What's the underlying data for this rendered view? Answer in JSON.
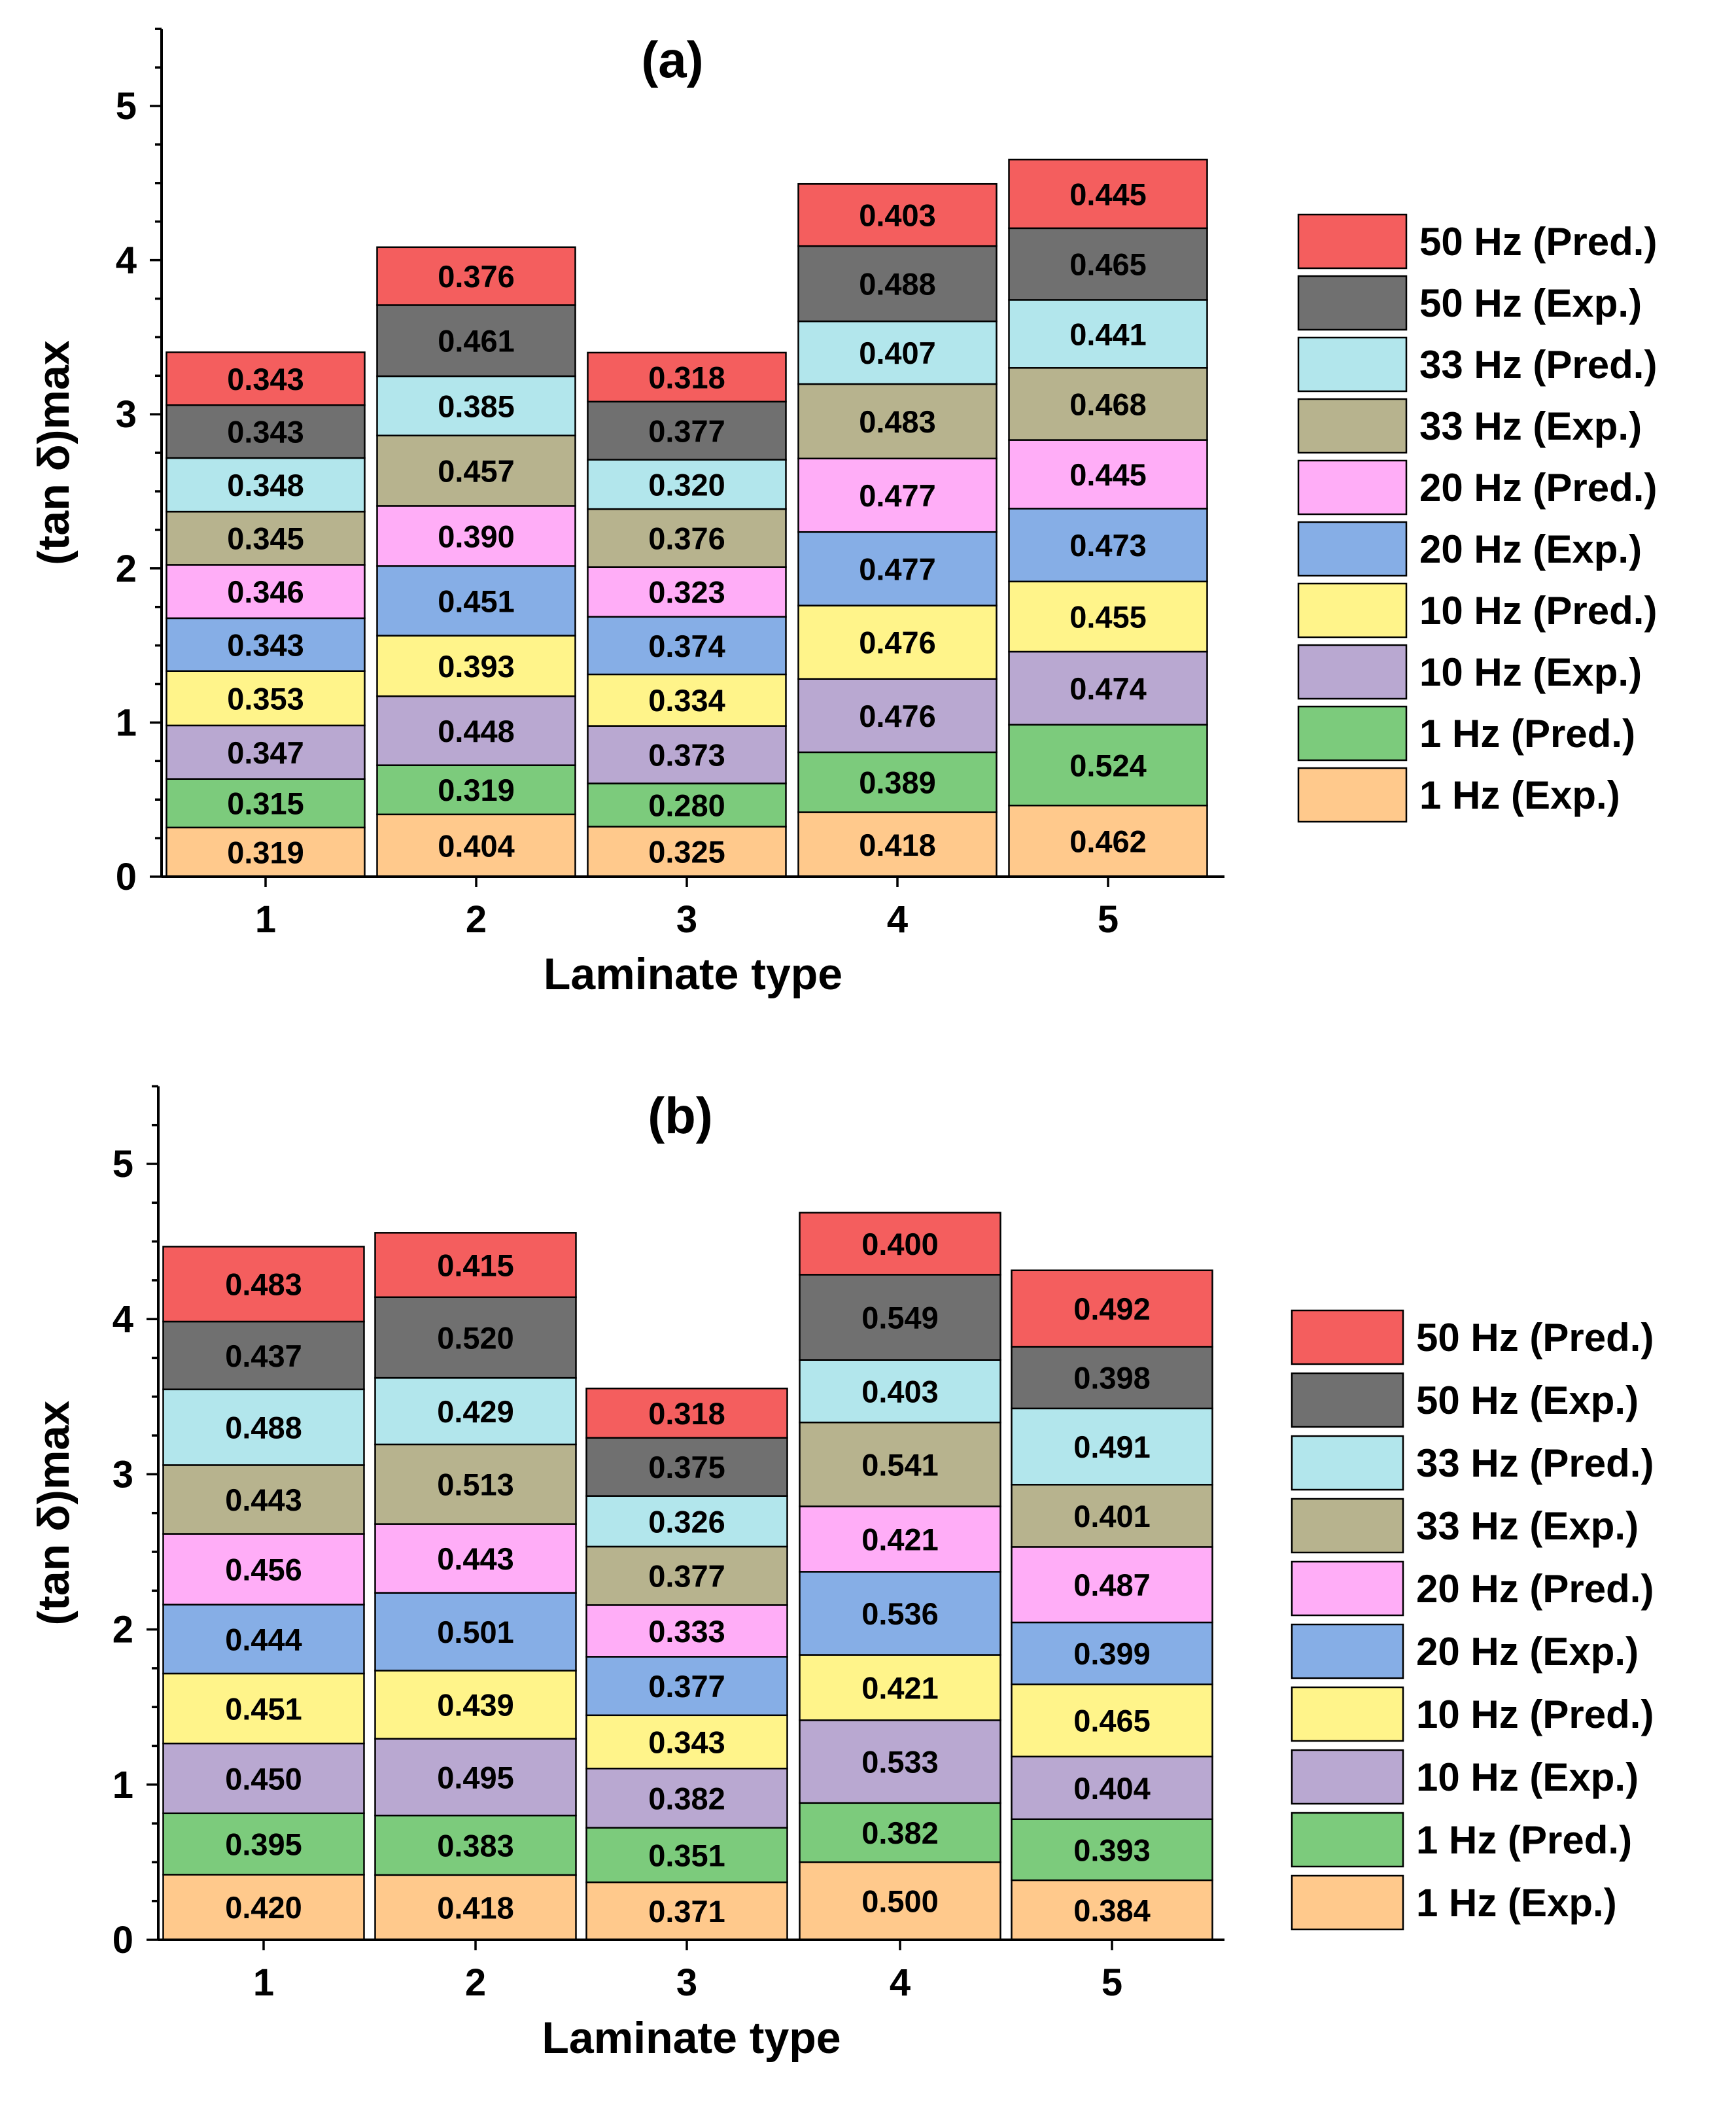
{
  "colors": {
    "1 Hz (Exp.)": "#ffc98c",
    "1 Hz (Pred.)": "#7ccb7c",
    "10 Hz (Exp.)": "#b9a8d1",
    "10 Hz (Pred.)": "#fff48a",
    "20 Hz (Exp.)": "#86aee6",
    "20 Hz (Pred.)": "#ffadf7",
    "33 Hz (Exp.)": "#b7b38e",
    "33 Hz (Pred.)": "#b2e6ec",
    "50 Hz (Exp.)": "#707070",
    "50 Hz (Pred.)": "#f45e5e"
  },
  "chart_data": [
    {
      "type": "bar",
      "stacked": true,
      "title": "(a)",
      "xlabel": "Laminate type",
      "ylabel": "(tan δ)max",
      "ylim": [
        0,
        5.5
      ],
      "yticks": [
        "0",
        "1",
        "2",
        "3",
        "4",
        "5"
      ],
      "categories": [
        "1",
        "2",
        "3",
        "4",
        "5"
      ],
      "grid": false,
      "legend_position": "right",
      "series": [
        {
          "name": "1 Hz (Exp.)",
          "values": [
            0.319,
            0.404,
            0.325,
            0.418,
            0.462
          ]
        },
        {
          "name": "1 Hz (Pred.)",
          "values": [
            0.315,
            0.319,
            0.28,
            0.389,
            0.524
          ]
        },
        {
          "name": "10 Hz (Exp.)",
          "values": [
            0.347,
            0.448,
            0.373,
            0.476,
            0.474
          ]
        },
        {
          "name": "10 Hz (Pred.)",
          "values": [
            0.353,
            0.393,
            0.334,
            0.476,
            0.455
          ]
        },
        {
          "name": "20 Hz (Exp.)",
          "values": [
            0.343,
            0.451,
            0.374,
            0.477,
            0.473
          ]
        },
        {
          "name": "20 Hz (Pred.)",
          "values": [
            0.346,
            0.39,
            0.323,
            0.477,
            0.445
          ]
        },
        {
          "name": "33 Hz (Exp.)",
          "values": [
            0.345,
            0.457,
            0.376,
            0.483,
            0.468
          ]
        },
        {
          "name": "33 Hz (Pred.)",
          "values": [
            0.348,
            0.385,
            0.32,
            0.407,
            0.441
          ]
        },
        {
          "name": "50 Hz (Exp.)",
          "values": [
            0.343,
            0.461,
            0.377,
            0.488,
            0.465
          ]
        },
        {
          "name": "50 Hz (Pred.)",
          "values": [
            0.343,
            0.376,
            0.318,
            0.403,
            0.445
          ]
        }
      ]
    },
    {
      "type": "bar",
      "stacked": true,
      "title": "(b)",
      "xlabel": "Laminate type",
      "ylabel": "(tan δ)max",
      "ylim": [
        0,
        5.5
      ],
      "yticks": [
        "0",
        "1",
        "2",
        "3",
        "4",
        "5"
      ],
      "categories": [
        "1",
        "2",
        "3",
        "4",
        "5"
      ],
      "grid": false,
      "legend_position": "right",
      "series": [
        {
          "name": "1 Hz (Exp.)",
          "values": [
            0.42,
            0.418,
            0.371,
            0.5,
            0.384
          ]
        },
        {
          "name": "1 Hz (Pred.)",
          "values": [
            0.395,
            0.383,
            0.351,
            0.382,
            0.393
          ]
        },
        {
          "name": "10 Hz (Exp.)",
          "values": [
            0.45,
            0.495,
            0.382,
            0.533,
            0.404
          ]
        },
        {
          "name": "10 Hz (Pred.)",
          "values": [
            0.451,
            0.439,
            0.343,
            0.421,
            0.465
          ]
        },
        {
          "name": "20 Hz (Exp.)",
          "values": [
            0.444,
            0.501,
            0.377,
            0.536,
            0.399
          ]
        },
        {
          "name": "20 Hz (Pred.)",
          "values": [
            0.456,
            0.443,
            0.333,
            0.421,
            0.487
          ]
        },
        {
          "name": "33 Hz (Exp.)",
          "values": [
            0.443,
            0.513,
            0.377,
            0.541,
            0.401
          ]
        },
        {
          "name": "33 Hz (Pred.)",
          "values": [
            0.488,
            0.429,
            0.326,
            0.403,
            0.491
          ]
        },
        {
          "name": "50 Hz (Exp.)",
          "values": [
            0.437,
            0.52,
            0.375,
            0.549,
            0.398
          ]
        },
        {
          "name": "50 Hz (Pred.)",
          "values": [
            0.483,
            0.415,
            0.318,
            0.4,
            0.492
          ]
        }
      ]
    }
  ]
}
